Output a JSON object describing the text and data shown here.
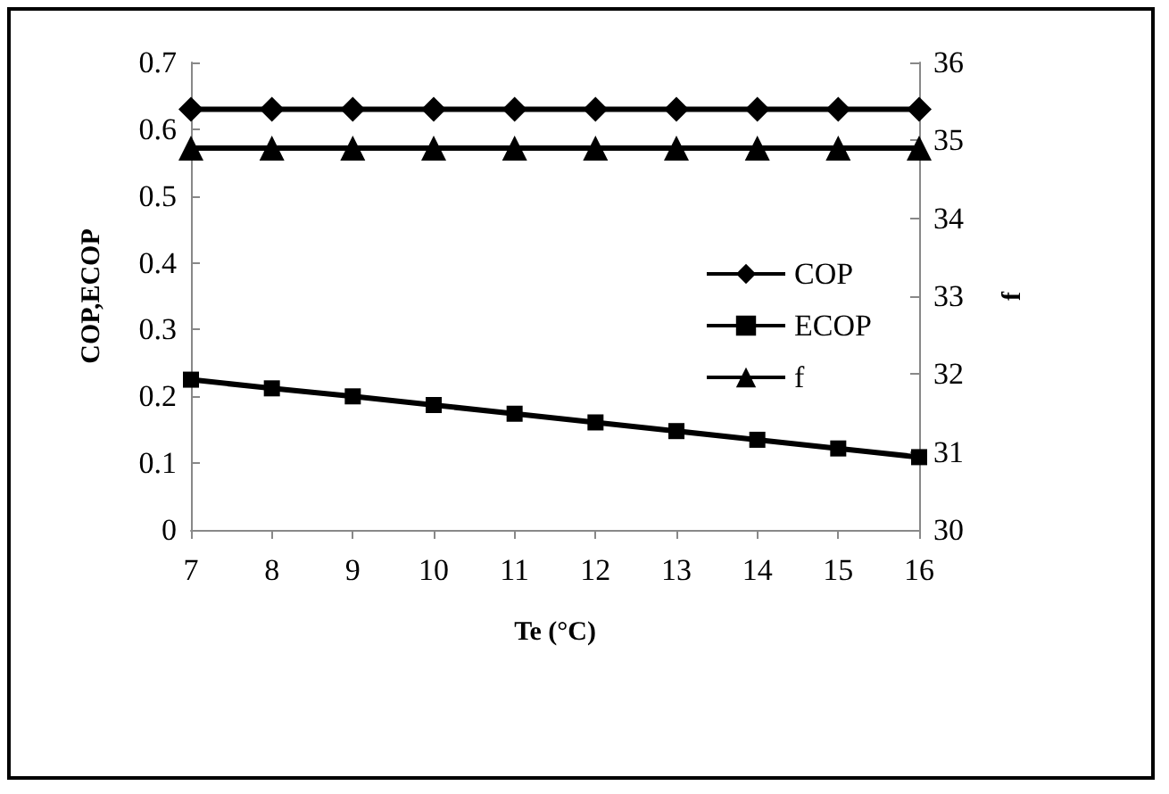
{
  "chart_data": {
    "type": "line",
    "xlabel": "Te (°C)",
    "ylabel": "COP,ECOP",
    "y2label": "f",
    "x": [
      7,
      8,
      9,
      10,
      11,
      12,
      13,
      14,
      15,
      16
    ],
    "series": [
      {
        "name": "COP",
        "color": "#000000",
        "marker": "diamond",
        "values": [
          0.63,
          0.63,
          0.63,
          0.63,
          0.63,
          0.63,
          0.63,
          0.63,
          0.63,
          0.63
        ]
      },
      {
        "name": "ECOP",
        "color": "#000000",
        "marker": "square",
        "values": [
          0.225,
          0.212,
          0.2,
          0.187,
          0.174,
          0.161,
          0.148,
          0.135,
          0.122,
          0.109
        ]
      },
      {
        "name": "f",
        "color": "#000000",
        "marker": "triangle",
        "axis": "y2",
        "values": [
          34.9,
          34.9,
          34.9,
          34.9,
          34.9,
          34.9,
          34.9,
          34.9,
          34.9,
          34.9
        ]
      }
    ],
    "xlim": [
      7,
      16
    ],
    "xticks": [
      7,
      8,
      9,
      10,
      11,
      12,
      13,
      14,
      15,
      16
    ],
    "ylim": [
      0,
      0.7
    ],
    "yticks": [
      0,
      0.1,
      0.2,
      0.3,
      0.4,
      0.5,
      0.6,
      0.7
    ],
    "y2lim": [
      30,
      36
    ],
    "y2ticks": [
      30,
      31,
      32,
      33,
      34,
      35,
      36
    ],
    "grid": false,
    "legend": "right",
    "line_style": "solid"
  }
}
